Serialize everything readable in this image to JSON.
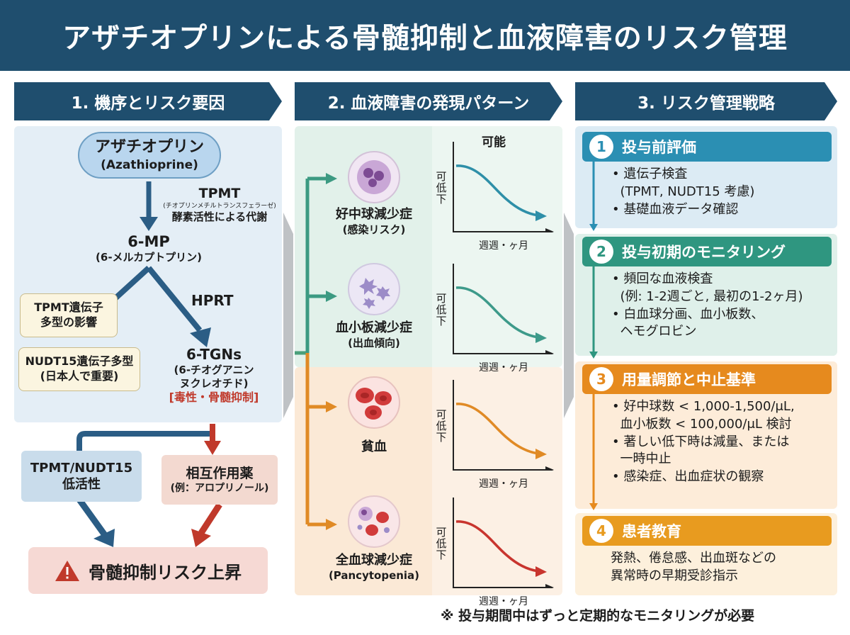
{
  "title": "アザチオプリンによる骨髄抑制と血液障害のリスク管理",
  "columns": {
    "col1": "1. 機序とリスク要因",
    "col2": "2. 血液障害の発現パターン",
    "col3": "3. リスク管理戦略"
  },
  "mechanism": {
    "drug_name": "アザチオプリン",
    "drug_en": "(Azathioprine)",
    "tpmt_title": "TPMT",
    "tpmt_full": "(チオプリンメチルトランスフェラーゼ)",
    "tpmt_desc": "酵素活性による代謝",
    "mp_title": "6-MP",
    "mp_sub": "(6-メルカプトプリン)",
    "hprt": "HPRT",
    "tgn_title": "6-TGNs",
    "tgn_sub1": "(6-チオグアニン",
    "tgn_sub2": "ヌクレオチド)",
    "tgn_tox": "[毒性・骨髄抑制]",
    "tpmt_poly_1": "TPMT遺伝子",
    "tpmt_poly_2": "多型の影響",
    "nudt_1": "NUDT15遺伝子多型",
    "nudt_2": "(日本人で重要)",
    "low_act_1": "TPMT/NUDT15",
    "low_act_2": "低活性",
    "interact_1": "相互作用薬",
    "interact_2": "(例：アロプリノール)",
    "risk": "骨髄抑制リスク上昇"
  },
  "patterns": {
    "possible_label": "可能",
    "y_label": [
      "可",
      "低",
      "下"
    ],
    "x_label": "週週・ヶ月",
    "items": [
      {
        "name": "好中球減少症",
        "sub": "(感染リスク)",
        "color": "#2e8fa8"
      },
      {
        "name": "血小板減少症",
        "sub": "(出血傾向)",
        "color": "#3d9a8a"
      },
      {
        "name": "貧血",
        "sub": "",
        "color": "#e08a25"
      },
      {
        "name": "全血球減少症",
        "sub": "(Pancytopenia)",
        "color": "#c8352e"
      }
    ]
  },
  "strategy": [
    {
      "num": "1",
      "title": "投与前評価",
      "color": "#2b8fb3",
      "lines": [
        "• 遺伝子検査",
        "  (TPMT, NUDT15 考慮)",
        "• 基礎血液データ確認"
      ]
    },
    {
      "num": "2",
      "title": "投与初期のモニタリング",
      "color": "#2f9680",
      "lines": [
        "• 頻回な血液検査",
        "  (例: 1-2週ごと, 最初の1-2ヶ月)",
        "• 白血球分画、血小板数、",
        "  ヘモグロビン"
      ]
    },
    {
      "num": "3",
      "title": "用量調節と中止基準",
      "color": "#e68a1e",
      "lines": [
        "• 好中球数 < 1,000-1,500/μL,",
        "  血小板数 < 100,000/μL 検討",
        "• 著しい低下時は減量、または",
        "  一時中止",
        "• 感染症、出血症状の観察"
      ]
    },
    {
      "num": "4",
      "title": "患者教育",
      "color": "#e89b1f",
      "lines": [
        "発熱、倦怠感、出血斑などの",
        "異常時の早期受診指示"
      ]
    }
  ],
  "footnote": "※ 投与期間中はずっと定期的なモニタリングが必要"
}
